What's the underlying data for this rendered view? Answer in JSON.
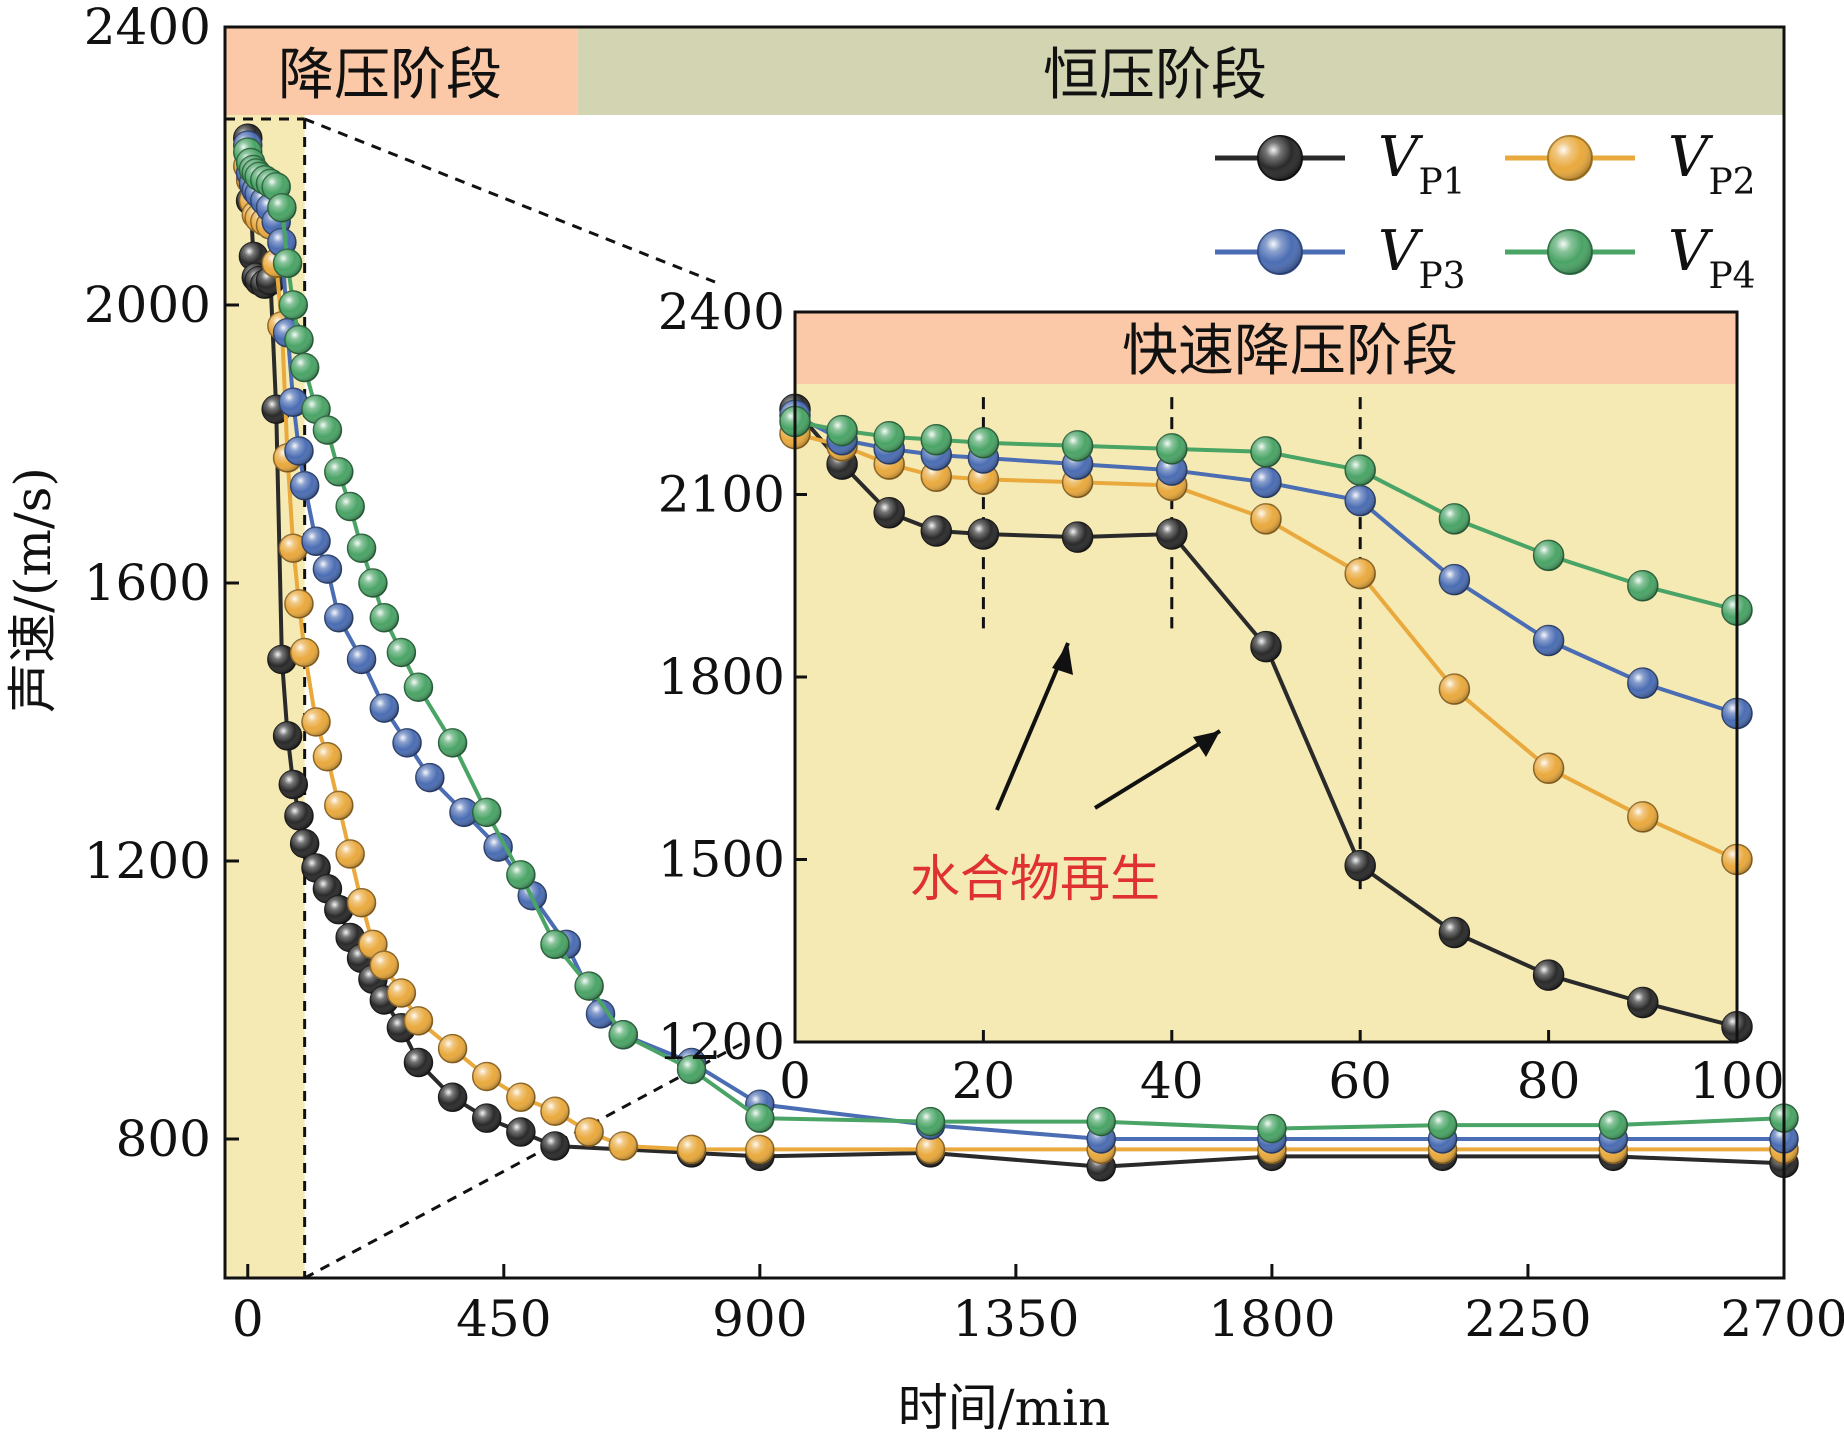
{
  "chart_data": [
    {
      "type": "line",
      "xlabel": "时间/min",
      "ylabel": "声速/(m/s)",
      "xlim": [
        -40,
        2700
      ],
      "ylim": [
        600,
        2400
      ],
      "xticks": [
        0,
        450,
        900,
        1350,
        1800,
        2250,
        2700
      ],
      "yticks": [
        800,
        1200,
        1600,
        2000,
        2400
      ],
      "phases": [
        {
          "label": "降压阶段",
          "x_range": [
            -40,
            580
          ],
          "color": "#fbc9a8"
        },
        {
          "label": "恒压阶段",
          "x_range": [
            580,
            2700
          ],
          "color": "#d3d4b2"
        }
      ],
      "highlight_region": {
        "x_range": [
          -40,
          100
        ],
        "color": "#f5eab3"
      },
      "legend": {
        "position": "top-right",
        "entries": [
          "VP1",
          "VP2",
          "VP3",
          "VP4"
        ]
      },
      "series": [
        {
          "name": "VP1",
          "label_main": "V",
          "label_sub": "P1",
          "color": "#2a2a2a",
          "x": [
            0,
            5,
            10,
            15,
            20,
            30,
            40,
            50,
            60,
            70,
            80,
            90,
            100,
            120,
            140,
            160,
            180,
            200,
            220,
            240,
            270,
            300,
            360,
            420,
            480,
            540,
            780,
            900,
            1200,
            1500,
            1800,
            2100,
            2400,
            2700
          ],
          "y": [
            2240,
            2150,
            2070,
            2040,
            2035,
            2030,
            2035,
            1850,
            1490,
            1380,
            1310,
            1265,
            1225,
            1190,
            1160,
            1130,
            1090,
            1060,
            1030,
            1000,
            960,
            910,
            860,
            830,
            810,
            790,
            780,
            775,
            780,
            760,
            775,
            775,
            775,
            765
          ]
        },
        {
          "name": "VP2",
          "label_main": "V",
          "label_sub": "P2",
          "color": "#e9a93d",
          "x": [
            0,
            5,
            10,
            15,
            20,
            30,
            40,
            50,
            60,
            70,
            80,
            90,
            100,
            120,
            140,
            160,
            180,
            200,
            220,
            240,
            270,
            300,
            360,
            420,
            480,
            540,
            600,
            660,
            780,
            900,
            1200,
            1500,
            1800,
            2100,
            2400,
            2700
          ],
          "y": [
            2200,
            2180,
            2150,
            2130,
            2125,
            2120,
            2115,
            2060,
            1970,
            1780,
            1650,
            1570,
            1500,
            1400,
            1350,
            1280,
            1210,
            1140,
            1080,
            1050,
            1010,
            970,
            930,
            890,
            860,
            840,
            810,
            790,
            785,
            785,
            785,
            785,
            785,
            785,
            785,
            785
          ]
        },
        {
          "name": "VP3",
          "label_main": "V",
          "label_sub": "P3",
          "color": "#4b6db3",
          "x": [
            0,
            5,
            10,
            15,
            20,
            30,
            40,
            50,
            60,
            70,
            80,
            90,
            100,
            120,
            140,
            160,
            200,
            240,
            280,
            320,
            380,
            440,
            500,
            560,
            620,
            660,
            780,
            900,
            1200,
            1500,
            1800,
            2100,
            2400,
            2700
          ],
          "y": [
            2230,
            2190,
            2175,
            2165,
            2160,
            2150,
            2140,
            2120,
            2090,
            1960,
            1860,
            1790,
            1740,
            1660,
            1620,
            1550,
            1490,
            1420,
            1370,
            1320,
            1270,
            1220,
            1150,
            1080,
            980,
            950,
            910,
            850,
            820,
            800,
            800,
            800,
            800,
            800
          ]
        },
        {
          "name": "VP4",
          "label_main": "V",
          "label_sub": "P4",
          "color": "#4aa466",
          "x": [
            0,
            5,
            10,
            15,
            20,
            30,
            40,
            50,
            60,
            70,
            80,
            90,
            100,
            120,
            140,
            160,
            180,
            200,
            220,
            240,
            270,
            300,
            360,
            420,
            480,
            540,
            600,
            660,
            780,
            900,
            1200,
            1500,
            1800,
            2100,
            2400,
            2700
          ],
          "y": [
            2220,
            2205,
            2195,
            2190,
            2185,
            2180,
            2175,
            2170,
            2140,
            2060,
            2000,
            1950,
            1910,
            1850,
            1820,
            1760,
            1710,
            1650,
            1600,
            1550,
            1500,
            1450,
            1370,
            1270,
            1180,
            1080,
            1020,
            950,
            900,
            830,
            825,
            825,
            815,
            820,
            820,
            830
          ]
        }
      ]
    },
    {
      "type": "line",
      "title": "快速降压阶段",
      "xlim": [
        0,
        100
      ],
      "ylim": [
        1200,
        2400
      ],
      "xticks": [
        0,
        20,
        40,
        60,
        80,
        100
      ],
      "yticks": [
        1200,
        1500,
        1800,
        2100,
        2400
      ],
      "vertical_markers": [
        20,
        40,
        60
      ],
      "annotation": "水合物再生",
      "series": [
        {
          "name": "VP1",
          "color": "#2a2a2a",
          "x": [
            0,
            5,
            10,
            15,
            20,
            30,
            40,
            50,
            60,
            70,
            80,
            90,
            100
          ],
          "y": [
            2240,
            2150,
            2070,
            2040,
            2035,
            2030,
            2035,
            1850,
            1490,
            1380,
            1310,
            1265,
            1225
          ]
        },
        {
          "name": "VP2",
          "color": "#e9a93d",
          "x": [
            0,
            5,
            10,
            15,
            20,
            30,
            40,
            50,
            60,
            70,
            80,
            90,
            100
          ],
          "y": [
            2200,
            2180,
            2150,
            2130,
            2125,
            2120,
            2115,
            2060,
            1970,
            1780,
            1650,
            1570,
            1500
          ]
        },
        {
          "name": "VP3",
          "color": "#4b6db3",
          "x": [
            0,
            5,
            10,
            15,
            20,
            30,
            40,
            50,
            60,
            70,
            80,
            90,
            100
          ],
          "y": [
            2230,
            2190,
            2175,
            2165,
            2160,
            2150,
            2140,
            2120,
            2090,
            1960,
            1860,
            1790,
            1740
          ]
        },
        {
          "name": "VP4",
          "color": "#4aa466",
          "x": [
            0,
            5,
            10,
            15,
            20,
            30,
            40,
            50,
            60,
            70,
            80,
            90,
            100
          ],
          "y": [
            2220,
            2205,
            2195,
            2190,
            2185,
            2180,
            2175,
            2170,
            2140,
            2060,
            2000,
            1950,
            1910
          ]
        }
      ]
    }
  ],
  "colors": {
    "annotation": "#e03131",
    "highlight": "#f5eab3",
    "phase_depress": "#fbc9a8",
    "phase_constant": "#d3d4b2"
  }
}
